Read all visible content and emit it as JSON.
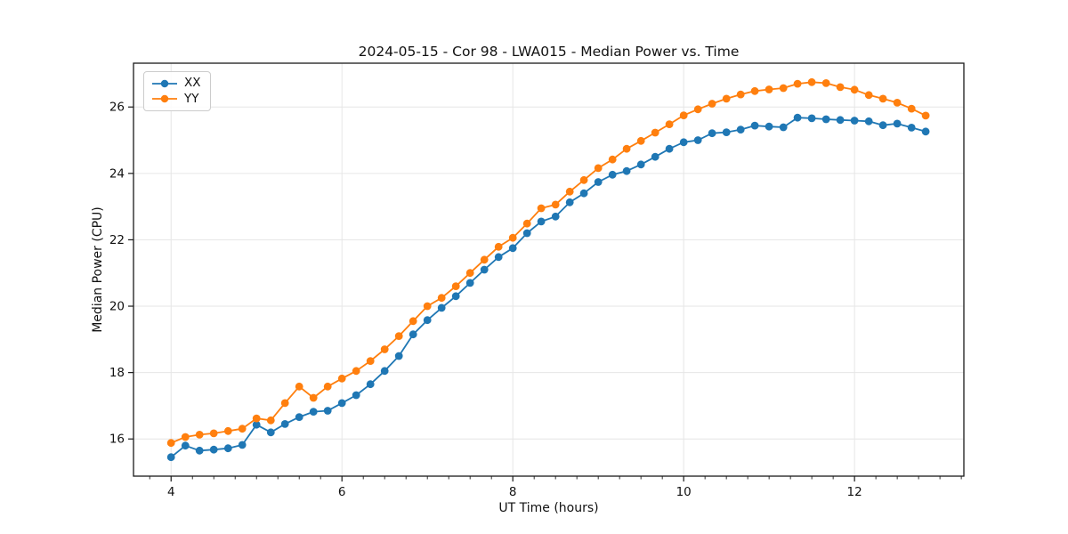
{
  "title": "2024-05-15 - Cor 98 - LWA015 - Median Power vs. Time",
  "chart_data": {
    "type": "line",
    "title": "2024-05-15 - Cor 98 - LWA015 - Median Power vs. Time",
    "xlabel": "UT Time (hours)",
    "ylabel": "Median Power (CPU)",
    "xlim": [
      3.56,
      13.28
    ],
    "ylim": [
      14.88,
      27.32
    ],
    "x_major_ticks": [
      4,
      6,
      8,
      10,
      12
    ],
    "x_minor_tick_step": 0.25,
    "y_major_ticks": [
      16,
      18,
      20,
      22,
      24,
      26
    ],
    "grid": true,
    "grid_color": "#e6e6e6",
    "spine_color": "#1a1a1a",
    "legend_position": "upper-left",
    "x": [
      4.0,
      4.167,
      4.333,
      4.5,
      4.667,
      4.833,
      5.0,
      5.167,
      5.333,
      5.5,
      5.667,
      5.833,
      6.0,
      6.167,
      6.333,
      6.5,
      6.667,
      6.833,
      7.0,
      7.167,
      7.333,
      7.5,
      7.667,
      7.833,
      8.0,
      8.167,
      8.333,
      8.5,
      8.667,
      8.833,
      9.0,
      9.167,
      9.333,
      9.5,
      9.667,
      9.833,
      10.0,
      10.167,
      10.333,
      10.5,
      10.667,
      10.833,
      11.0,
      11.167,
      11.333,
      11.5,
      11.667,
      11.833,
      12.0,
      12.167,
      12.333,
      12.5,
      12.667,
      12.833
    ],
    "series": [
      {
        "name": "XX",
        "color": "#1f77b4",
        "values": [
          15.45,
          15.8,
          15.65,
          15.68,
          15.72,
          15.82,
          16.43,
          16.2,
          16.45,
          16.66,
          16.82,
          16.85,
          17.08,
          17.32,
          17.65,
          18.05,
          18.5,
          19.15,
          19.58,
          19.95,
          20.3,
          20.7,
          21.1,
          21.48,
          21.75,
          22.2,
          22.55,
          22.7,
          23.13,
          23.4,
          23.74,
          23.96,
          24.07,
          24.27,
          24.5,
          24.74,
          24.94,
          25.0,
          25.21,
          25.24,
          25.32,
          25.44,
          25.41,
          25.39,
          25.68,
          25.66,
          25.63,
          25.61,
          25.59,
          25.57,
          25.45,
          25.5,
          25.38,
          25.26
        ]
      },
      {
        "name": "YY",
        "color": "#ff7f0e",
        "values": [
          15.88,
          16.06,
          16.13,
          16.17,
          16.24,
          16.31,
          16.62,
          16.56,
          17.08,
          17.58,
          17.24,
          17.58,
          17.82,
          18.05,
          18.35,
          18.7,
          19.1,
          19.55,
          20.0,
          20.25,
          20.6,
          21.0,
          21.4,
          21.79,
          22.06,
          22.49,
          22.95,
          23.06,
          23.45,
          23.8,
          24.16,
          24.42,
          24.74,
          24.98,
          25.23,
          25.48,
          25.75,
          25.93,
          26.1,
          26.25,
          26.38,
          26.48,
          26.53,
          26.57,
          26.7,
          26.75,
          26.72,
          26.6,
          26.52,
          26.36,
          26.25,
          26.13,
          25.95,
          25.74
        ]
      }
    ]
  }
}
